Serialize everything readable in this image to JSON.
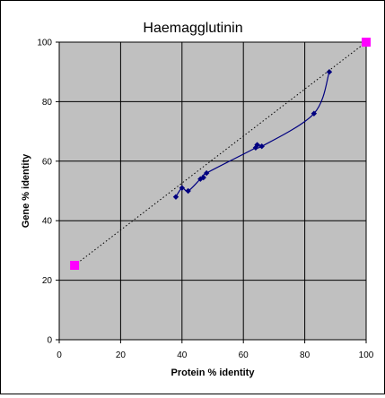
{
  "chart_data": {
    "type": "scatter",
    "title": "Haemagglutinin",
    "xlabel": "Protein % identity",
    "ylabel": "Gene % identity",
    "xlim": [
      0,
      100
    ],
    "ylim": [
      0,
      100
    ],
    "xticks": [
      "0",
      "20",
      "40",
      "60",
      "80",
      "100"
    ],
    "yticks": [
      "0",
      "20",
      "40",
      "60",
      "80",
      "100"
    ],
    "grid": true,
    "legend": "none",
    "colors": {
      "plot_background": "#c0c0c0",
      "data_series": "#000080",
      "reference_series": "#ff00ff",
      "reference_line": "#000000",
      "grid": "#000000"
    },
    "series": [
      {
        "role": "data",
        "marker": "diamond",
        "line": "smoothed",
        "points": [
          [
            38,
            48
          ],
          [
            40,
            51
          ],
          [
            42,
            50
          ],
          [
            46,
            54
          ],
          [
            47,
            54.5
          ],
          [
            48,
            56
          ],
          [
            64,
            64.5
          ],
          [
            64.5,
            65.5
          ],
          [
            66,
            65
          ],
          [
            83,
            76
          ],
          [
            88,
            90
          ]
        ]
      },
      {
        "role": "reference",
        "marker": "square",
        "line": "dotted",
        "points": [
          [
            5,
            25
          ],
          [
            100,
            100
          ]
        ]
      }
    ]
  }
}
